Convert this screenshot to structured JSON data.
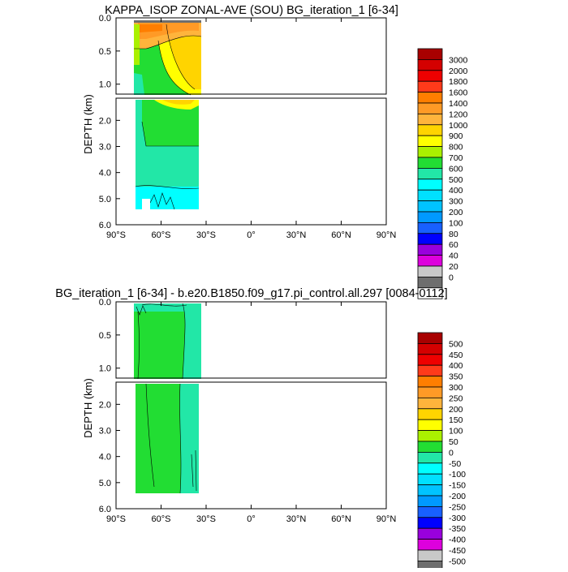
{
  "chart_data": [
    {
      "type": "heatmap",
      "title": "KAPPA_ISOP ZONAL-AVE (SOU) BG_iteration_1 [6-34]",
      "ylabel": "DEPTH (km)",
      "xlabel": "",
      "x_ticks": [
        "90°S",
        "60°S",
        "30°S",
        "0°",
        "30°N",
        "60°N",
        "90°N"
      ],
      "y_ticks_upper": [
        "0.0",
        "0.5",
        "1.0"
      ],
      "y_ticks_lower": [
        "2.0",
        "3.0",
        "4.0",
        "5.0",
        "6.0"
      ],
      "xlim": [
        -90,
        90
      ],
      "ylim": [
        6.0,
        0.0
      ],
      "colorbar_labels": [
        "3000",
        "2000",
        "1800",
        "1600",
        "1400",
        "1200",
        "1000",
        "900",
        "800",
        "700",
        "600",
        "500",
        "400",
        "300",
        "200",
        "100",
        "80",
        "60",
        "40",
        "20",
        "0"
      ],
      "colors": [
        "#a80000",
        "#d40000",
        "#ee0000",
        "#ff3a1a",
        "#ff7e00",
        "#ff9a26",
        "#ffb43c",
        "#ffd400",
        "#ffff00",
        "#aaf000",
        "#22dd33",
        "#22e7a7",
        "#00ffff",
        "#00e0ff",
        "#00c3ff",
        "#0099ff",
        "#1860ff",
        "#0000ff",
        "#9900dd",
        "#dd00dd",
        "#c8c8c8",
        "#6e6e6e",
        "#ffffff"
      ]
    },
    {
      "type": "heatmap",
      "title": "BG_iteration_1 [6-34] - b.e20.B1850.f09_g17.pi_control.all.297 [0084-0112]",
      "ylabel": "DEPTH (km)",
      "xlabel": "",
      "x_ticks": [
        "90°S",
        "60°S",
        "30°S",
        "0°",
        "30°N",
        "60°N",
        "90°N"
      ],
      "y_ticks_upper": [
        "0.0",
        "0.5",
        "1.0"
      ],
      "y_ticks_lower": [
        "2.0",
        "3.0",
        "4.0",
        "5.0",
        "6.0"
      ],
      "xlim": [
        -90,
        90
      ],
      "ylim": [
        6.0,
        0.0
      ],
      "colorbar_labels": [
        "500",
        "450",
        "400",
        "350",
        "300",
        "250",
        "200",
        "150",
        "100",
        "50",
        "0",
        "-50",
        "-100",
        "-150",
        "-200",
        "-250",
        "-300",
        "-350",
        "-400",
        "-450",
        "-500"
      ],
      "colors": [
        "#a80000",
        "#d40000",
        "#ee0000",
        "#ff3a1a",
        "#ff7e00",
        "#ff9a26",
        "#ffb43c",
        "#ffd400",
        "#ffff00",
        "#aaf000",
        "#22dd33",
        "#22e7a7",
        "#00ffff",
        "#00e0ff",
        "#00c3ff",
        "#0099ff",
        "#1860ff",
        "#0000ff",
        "#9900dd",
        "#dd00dd",
        "#c8c8c8",
        "#6e6e6e",
        "#ffffff"
      ]
    }
  ]
}
